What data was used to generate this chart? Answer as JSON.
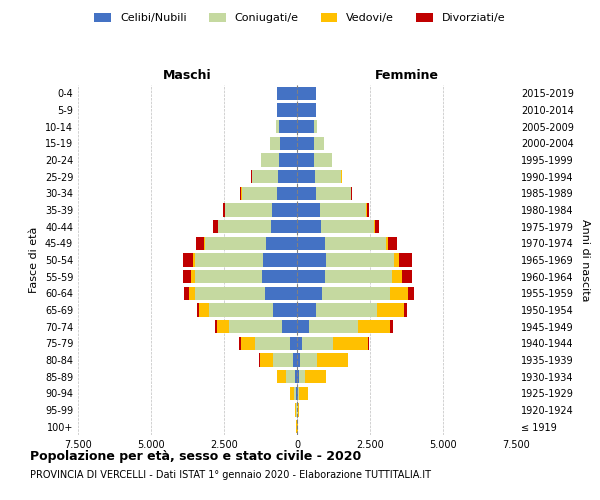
{
  "age_groups": [
    "100+",
    "95-99",
    "90-94",
    "85-89",
    "80-84",
    "75-79",
    "70-74",
    "65-69",
    "60-64",
    "55-59",
    "50-54",
    "45-49",
    "40-44",
    "35-39",
    "30-34",
    "25-29",
    "20-24",
    "15-19",
    "10-14",
    "5-9",
    "0-4"
  ],
  "birth_years": [
    "≤ 1919",
    "1920-1924",
    "1925-1929",
    "1930-1934",
    "1935-1939",
    "1940-1944",
    "1945-1949",
    "1950-1954",
    "1955-1959",
    "1960-1964",
    "1965-1969",
    "1970-1974",
    "1975-1979",
    "1980-1984",
    "1985-1989",
    "1990-1994",
    "1995-1999",
    "2000-2004",
    "2005-2009",
    "2010-2014",
    "2015-2019"
  ],
  "colors": {
    "celibi": "#4472c4",
    "coniugati": "#c5d9a0",
    "vedovi": "#ffc000",
    "divorziati": "#c00000"
  },
  "males": {
    "celibi": [
      5,
      10,
      30,
      70,
      120,
      230,
      520,
      820,
      1100,
      1200,
      1150,
      1050,
      900,
      850,
      700,
      650,
      620,
      580,
      620,
      680,
      680
    ],
    "coniugati": [
      5,
      15,
      80,
      300,
      700,
      1200,
      1800,
      2200,
      2400,
      2300,
      2350,
      2100,
      1800,
      1600,
      1200,
      900,
      600,
      350,
      100,
      20,
      5
    ],
    "vedovi": [
      10,
      30,
      120,
      300,
      450,
      500,
      420,
      320,
      200,
      120,
      60,
      30,
      15,
      10,
      5,
      5,
      3,
      2,
      1,
      0,
      0
    ],
    "divorziati": [
      0,
      2,
      5,
      15,
      25,
      50,
      80,
      100,
      180,
      280,
      350,
      280,
      150,
      70,
      30,
      15,
      8,
      4,
      2,
      0,
      0
    ]
  },
  "females": {
    "nubili": [
      5,
      10,
      25,
      60,
      100,
      180,
      400,
      650,
      850,
      950,
      980,
      950,
      820,
      780,
      650,
      620,
      590,
      570,
      590,
      640,
      640
    ],
    "coniugate": [
      3,
      10,
      60,
      220,
      580,
      1050,
      1700,
      2100,
      2350,
      2300,
      2350,
      2100,
      1800,
      1600,
      1200,
      900,
      600,
      340,
      95,
      18,
      4
    ],
    "vedove": [
      15,
      60,
      280,
      700,
      1050,
      1200,
      1100,
      900,
      600,
      350,
      180,
      80,
      35,
      15,
      7,
      5,
      3,
      2,
      1,
      0,
      0
    ],
    "divorziate": [
      0,
      2,
      5,
      15,
      25,
      50,
      90,
      120,
      200,
      350,
      420,
      300,
      160,
      70,
      30,
      15,
      8,
      4,
      2,
      0,
      0
    ]
  },
  "xlim": 7500,
  "xticks": [
    -7500,
    -5000,
    -2500,
    0,
    2500,
    5000,
    7500
  ],
  "xtick_labels": [
    "7.500",
    "5.000",
    "2.500",
    "0",
    "2.500",
    "5.000",
    "7.500"
  ],
  "title": "Popolazione per età, sesso e stato civile - 2020",
  "subtitle": "PROVINCIA DI VERCELLI - Dati ISTAT 1° gennaio 2020 - Elaborazione TUTTITALIA.IT",
  "ylabel_left": "Fasce di età",
  "ylabel_right": "Anni di nascita",
  "header_male": "Maschi",
  "header_female": "Femmine",
  "legend_labels": [
    "Celibi/Nubili",
    "Coniugati/e",
    "Vedovi/e",
    "Divorziati/e"
  ]
}
